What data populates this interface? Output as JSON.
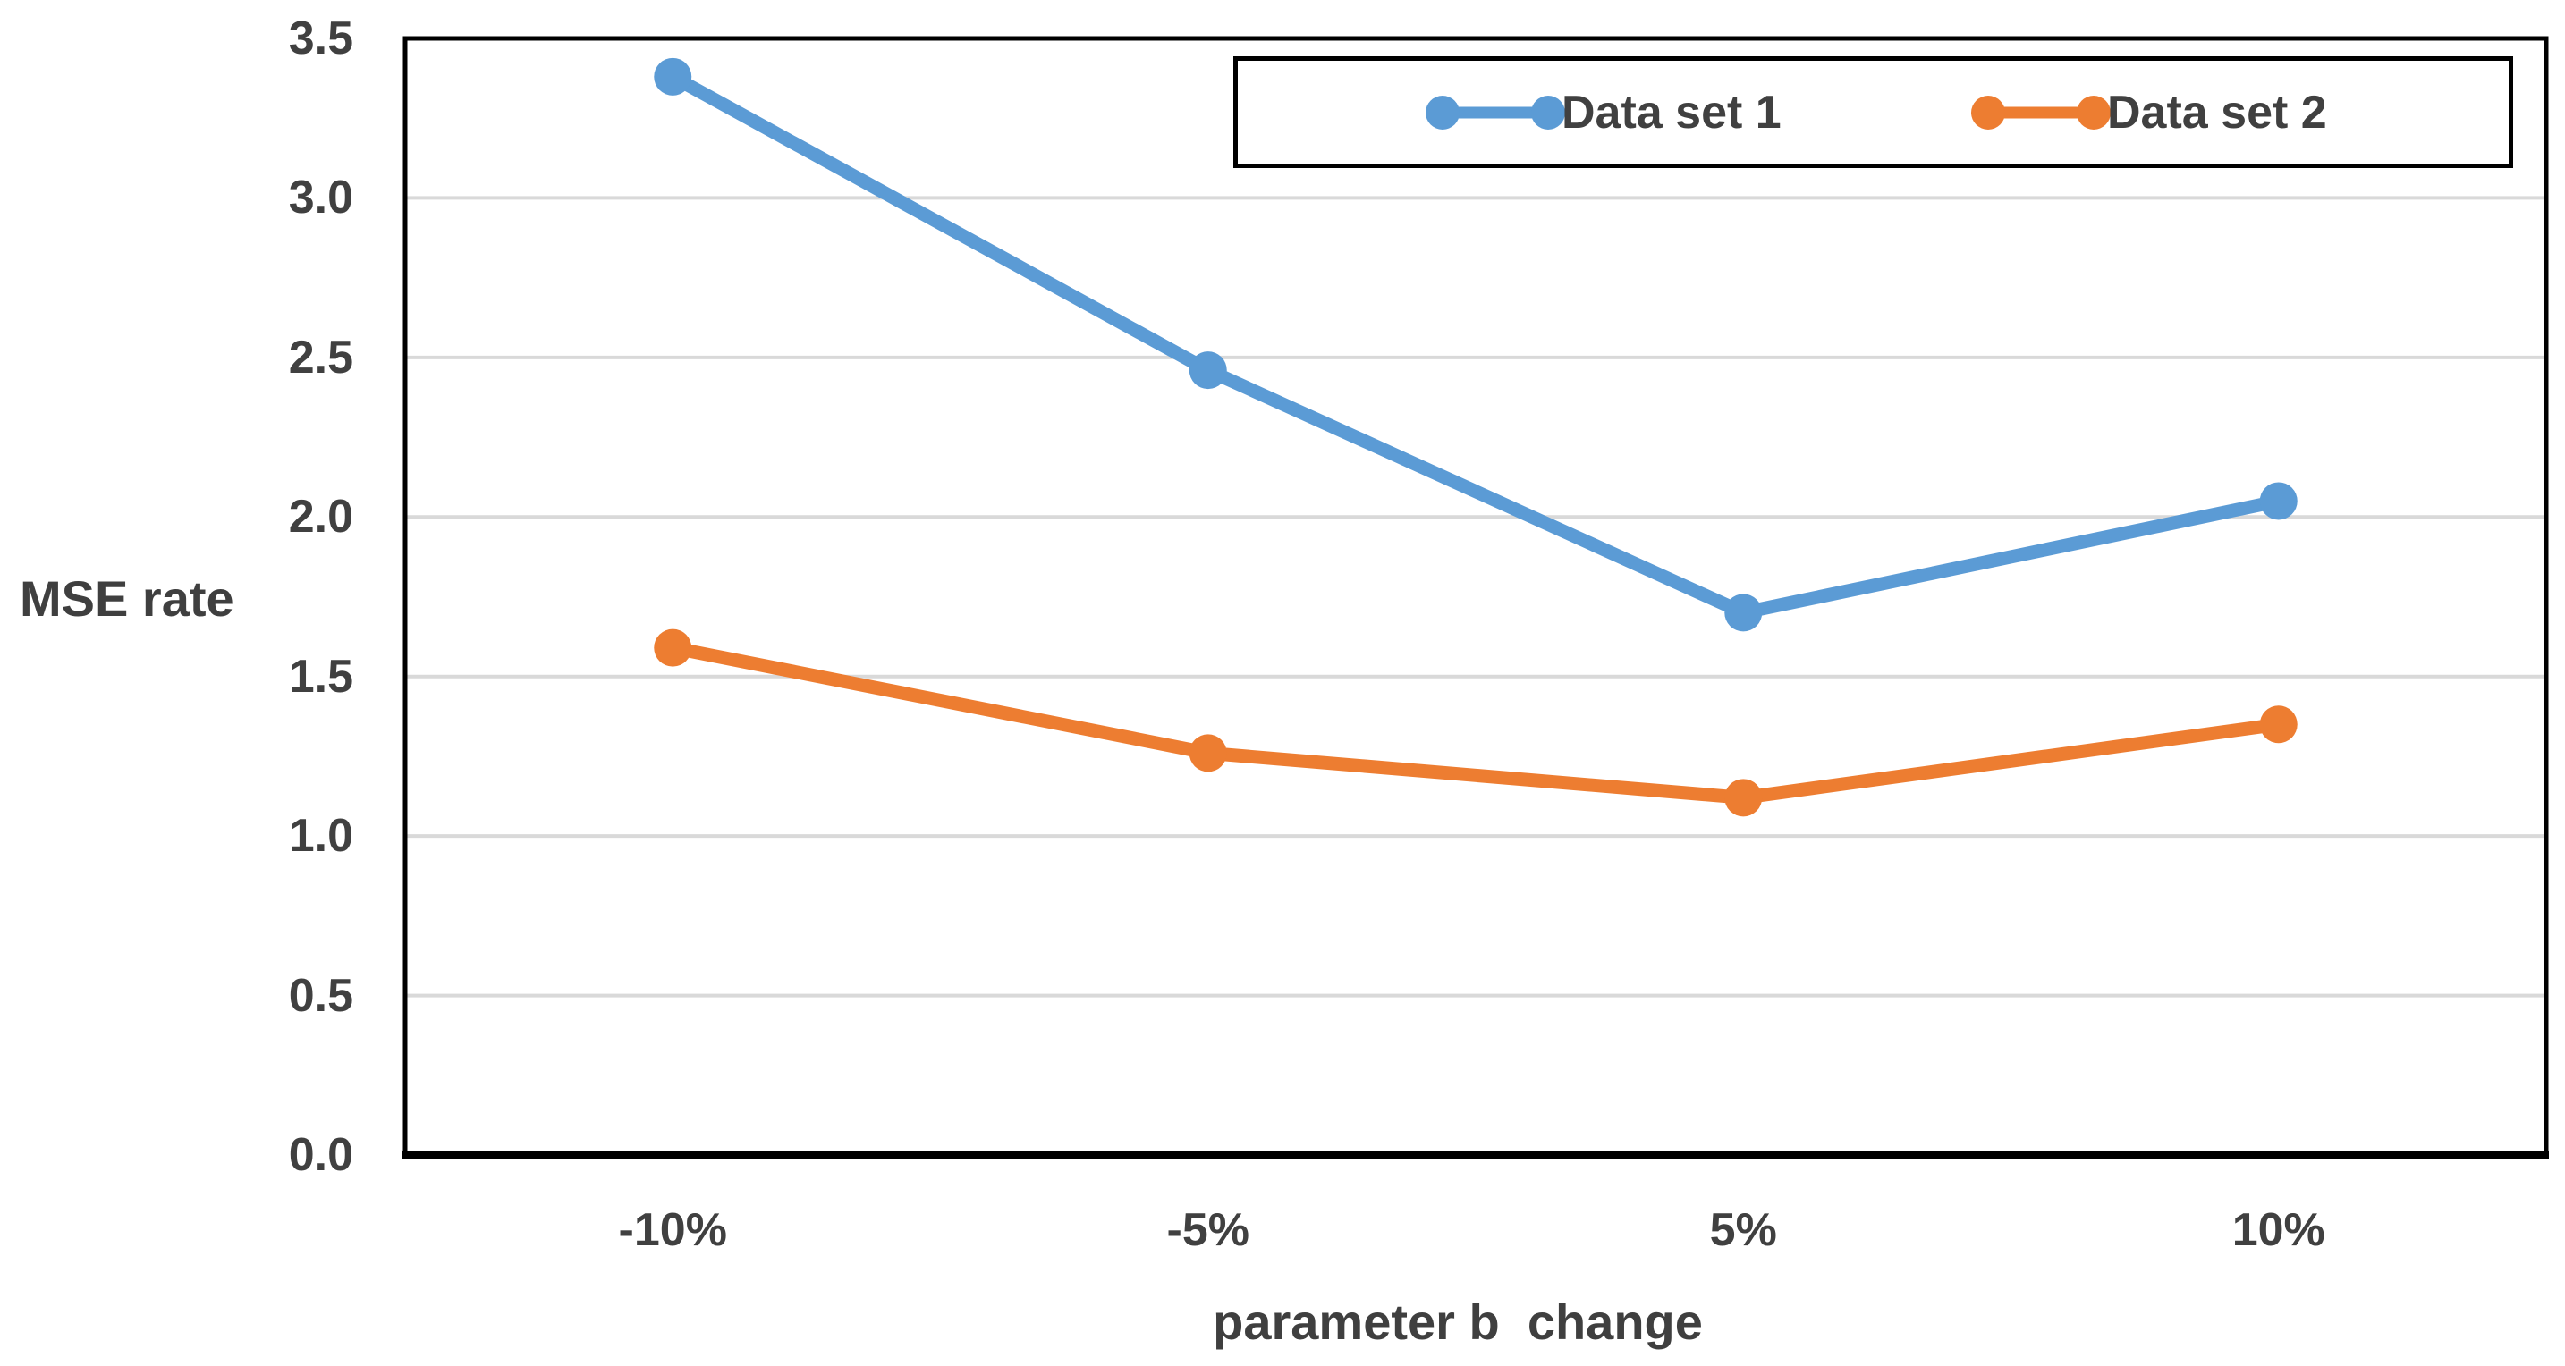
{
  "chart_data": {
    "type": "line",
    "categories": [
      "-10%",
      "-5%",
      "5%",
      "10%"
    ],
    "series": [
      {
        "name": "Data set 1",
        "color": "#5B9BD5",
        "values": [
          3.38,
          2.46,
          1.7,
          2.05
        ]
      },
      {
        "name": "Data set 2",
        "color": "#ED7D31",
        "values": [
          1.59,
          1.26,
          1.12,
          1.35
        ]
      }
    ],
    "title": "",
    "xlabel": "parameter b  change",
    "ylabel": "MSE rate",
    "ylim": [
      0,
      3.5
    ],
    "ytick_step": 0.5,
    "ytick_labels": [
      "0.0",
      "0.5",
      "1.0",
      "1.5",
      "2.0",
      "2.5",
      "3.0",
      "3.5"
    ],
    "grid": "horizontal",
    "legend_position": "top-right",
    "marker": "circle",
    "colors": {
      "gridline": "#D9D9D9",
      "axis": "#000000",
      "text": "#404040"
    }
  }
}
